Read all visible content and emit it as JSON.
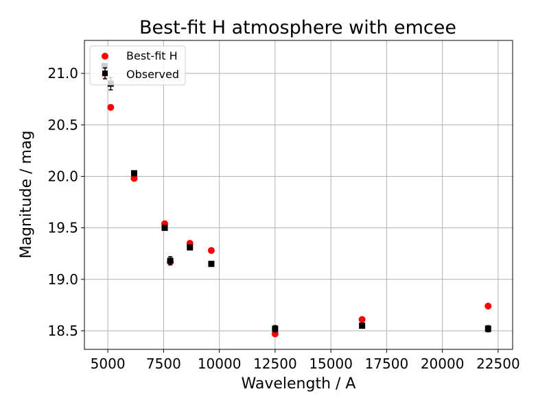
{
  "chart_data": {
    "type": "scatter",
    "title": "Best-fit H atmosphere with emcee",
    "xlabel": "Wavelength / A",
    "ylabel": "Magnitude / mag",
    "xlim": [
      3950,
      23150
    ],
    "ylim": [
      21.32,
      18.32
    ],
    "y_inverted": true,
    "grid": true,
    "legend_position": "top-left",
    "xticks": [
      5000,
      7500,
      10000,
      12500,
      15000,
      17500,
      20000,
      22500
    ],
    "xtick_labels": [
      "5000",
      "7500",
      "10000",
      "12500",
      "15000",
      "17500",
      "20000",
      "22500"
    ],
    "yticks": [
      18.5,
      19.0,
      19.5,
      20.0,
      20.5,
      21.0
    ],
    "ytick_labels": [
      "18.5",
      "19.0",
      "19.5",
      "20.0",
      "20.5",
      "21.0"
    ],
    "series": [
      {
        "name": "Best-fit H",
        "marker": "circle",
        "color": "#ff0000",
        "x": [
          4850,
          5130,
          6180,
          7550,
          7800,
          8680,
          9640,
          12500,
          16400,
          22050
        ],
        "y": [
          20.98,
          20.67,
          19.98,
          19.54,
          19.17,
          19.35,
          19.28,
          18.47,
          18.61,
          18.74
        ]
      },
      {
        "name": "Observed",
        "marker": "square",
        "color": "#000000",
        "x": [
          4850,
          5130,
          6180,
          7550,
          7800,
          8680,
          9640,
          12500,
          16400,
          22050
        ],
        "y": [
          21.07,
          20.9,
          20.03,
          19.5,
          19.18,
          19.31,
          19.15,
          18.52,
          18.55,
          18.52
        ],
        "yerr": [
          0.0,
          0.06,
          0.0,
          0.0,
          0.04,
          0.0,
          0.0,
          0.03,
          0.0,
          0.03
        ]
      }
    ]
  }
}
